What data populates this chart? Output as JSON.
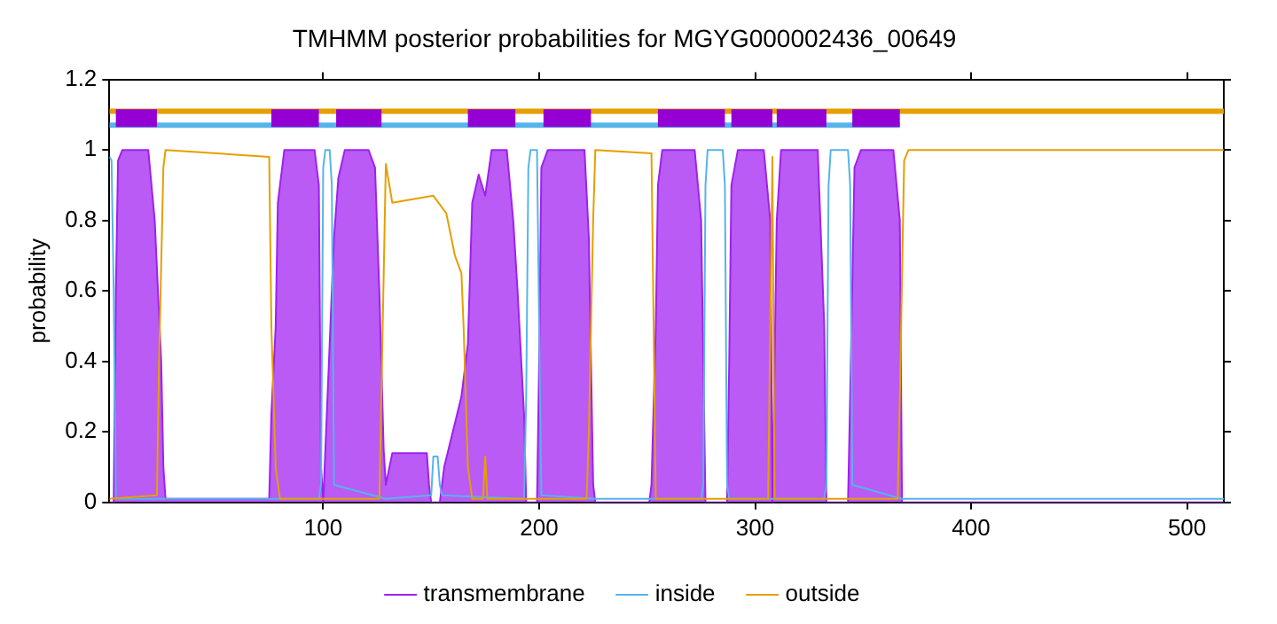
{
  "chart_data": {
    "type": "line",
    "title": "TMHMM posterior probabilities for MGYG000002436_00649",
    "ylabel": "probability",
    "xlim": [
      1,
      517
    ],
    "xticks": [
      100,
      200,
      300,
      400,
      500
    ],
    "ylim": [
      0,
      1.2
    ],
    "yticks": [
      0,
      0.2,
      0.4,
      0.6,
      0.8,
      1,
      1.2
    ],
    "grid": false,
    "legend": "bottom",
    "marker": "none",
    "line_style": "solid",
    "series": [
      {
        "color": "#e69f00",
        "x": [
          1,
          517
        ],
        "values": [
          1.11,
          1.11
        ]
      },
      {
        "color": "#56b4e9",
        "x": [
          1,
          367
        ],
        "values": [
          1.07,
          1.07
        ]
      },
      {
        "color": "#9400d3",
        "x": [
          4,
          23,
          50,
          76,
          98,
          102,
          106,
          127,
          150,
          167,
          189,
          195,
          202,
          224,
          240,
          255,
          286,
          287,
          289,
          308,
          309,
          310,
          333,
          340,
          345,
          367
        ],
        "values": [
          1.09,
          1.09,
          null,
          1.09,
          1.09,
          null,
          1.09,
          1.09,
          null,
          1.09,
          1.09,
          null,
          1.09,
          1.09,
          null,
          1.09,
          1.09,
          null,
          1.09,
          1.09,
          null,
          1.09,
          1.09,
          null,
          1.09,
          1.09
        ]
      },
      {
        "type": "area",
        "name": "transmembrane",
        "color": "#a020f0",
        "x": [
          1,
          3,
          4,
          5,
          7,
          19,
          22,
          25,
          26,
          27,
          75,
          76,
          78,
          79,
          82,
          96,
          98,
          99,
          100,
          105,
          107,
          110,
          121,
          124,
          126,
          128,
          129,
          132,
          148,
          149,
          150,
          154,
          156,
          160,
          164,
          167,
          169,
          172,
          175,
          178,
          185,
          188,
          190,
          193,
          194,
          199,
          200,
          201,
          204,
          221,
          223,
          225,
          226,
          251,
          252,
          254,
          255,
          257,
          272,
          275,
          277,
          287,
          288,
          289,
          292,
          304,
          307,
          308,
          310,
          312,
          329,
          332,
          333,
          343,
          344,
          346,
          349,
          364,
          367,
          368,
          517
        ],
        "values": [
          0,
          0,
          0.6,
          0.97,
          1,
          1,
          0.8,
          0.4,
          0.1,
          0.01,
          0.01,
          0.25,
          0.5,
          0.85,
          1,
          1,
          0.9,
          0.1,
          0,
          0.75,
          0.92,
          1,
          1,
          0.95,
          0.6,
          0.15,
          0.05,
          0.14,
          0.14,
          0.05,
          0,
          0,
          0.1,
          0.2,
          0.3,
          0.45,
          0.85,
          0.93,
          0.87,
          1,
          1,
          0.8,
          0.6,
          0.25,
          0,
          0,
          0.4,
          0.95,
          1,
          1,
          0.75,
          0.05,
          0,
          0,
          0.05,
          0.5,
          0.9,
          1,
          1,
          0.8,
          0,
          0,
          0.4,
          0.9,
          1,
          1,
          0.8,
          0,
          0.8,
          1,
          1,
          0.5,
          0,
          0,
          0.3,
          0.95,
          1,
          1,
          0.8,
          0,
          0
        ]
      },
      {
        "name": "inside",
        "color": "#56b4e9",
        "x": [
          1,
          2,
          3,
          4,
          27,
          75,
          98,
          99,
          100,
          101,
          103,
          104,
          105,
          129,
          150,
          151,
          153,
          154,
          155,
          193,
          194,
          195,
          196,
          199,
          200,
          201,
          226,
          252,
          275,
          276,
          277,
          278,
          285,
          286,
          287,
          288,
          332,
          333,
          334,
          335,
          343,
          344,
          345,
          368,
          517
        ],
        "values": [
          0.98,
          0.97,
          0.6,
          0.01,
          0.01,
          0.01,
          0.01,
          0.05,
          0.95,
          1,
          1,
          0.9,
          0.05,
          0.01,
          0.02,
          0.13,
          0.13,
          0.05,
          0.02,
          0.01,
          0.3,
          0.95,
          1,
          1,
          0.5,
          0.02,
          0.01,
          0.01,
          0.01,
          0.05,
          0.9,
          1,
          1,
          0.9,
          0.05,
          0.01,
          0.01,
          0.05,
          0.9,
          1,
          1,
          0.9,
          0.05,
          0.01,
          0.01
        ]
      },
      {
        "name": "outside",
        "color": "#e69f00",
        "x": [
          1,
          23,
          24,
          26,
          27,
          75,
          76,
          78,
          80,
          126,
          129,
          132,
          151,
          157,
          161,
          164,
          165,
          167,
          169,
          174,
          175,
          176,
          222,
          223,
          225,
          226,
          252,
          253,
          254,
          306,
          308,
          309,
          366,
          367,
          369,
          371,
          517
        ],
        "values": [
          0.01,
          0.02,
          0.4,
          0.95,
          1,
          0.98,
          0.5,
          0.1,
          0.01,
          0.01,
          0.96,
          0.85,
          0.87,
          0.82,
          0.7,
          0.65,
          0.5,
          0.1,
          0.01,
          0.01,
          0.13,
          0.01,
          0.01,
          0.2,
          0.8,
          1,
          0.99,
          0.5,
          0.01,
          0.01,
          0.98,
          0.01,
          0.01,
          0.3,
          0.97,
          1,
          1
        ]
      }
    ]
  }
}
